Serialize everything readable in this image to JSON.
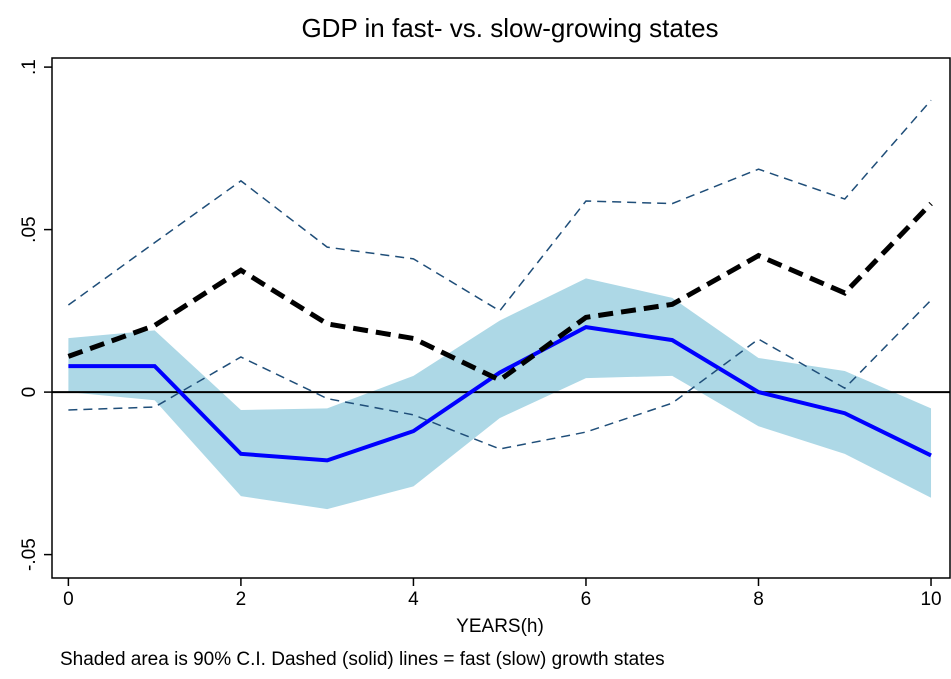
{
  "chart_data": {
    "type": "line",
    "title": "GDP in fast- vs. slow-growing states",
    "xlabel": "YEARS(h)",
    "note": "Shaded area is 90% C.I. Dashed (solid) lines = fast (slow) growth states",
    "x": [
      0,
      1,
      2,
      3,
      4,
      5,
      6,
      7,
      8,
      9,
      10
    ],
    "bands": [
      {
        "color": "#add8e6",
        "upper": [
          0.0166,
          0.019,
          -0.0055,
          -0.005,
          0.005,
          0.022,
          0.035,
          0.029,
          0.0105,
          0.0065,
          -0.005
        ],
        "lower": [
          0.0,
          -0.0025,
          -0.032,
          -0.036,
          -0.029,
          -0.008,
          0.0043,
          0.005,
          -0.0105,
          -0.019,
          -0.0325
        ]
      }
    ],
    "series": [
      {
        "color": "#0000ff",
        "line_style": "solid",
        "line_width": 4,
        "values": [
          0.008,
          0.008,
          -0.019,
          -0.021,
          -0.012,
          0.006,
          0.02,
          0.016,
          0.0,
          -0.0065,
          -0.0195
        ]
      },
      {
        "color": "#000000",
        "line_style": "dashed",
        "line_width": 5,
        "values": [
          0.011,
          0.0205,
          0.0375,
          0.021,
          0.0165,
          0.0037,
          0.023,
          0.027,
          0.042,
          0.0305,
          0.058
        ]
      },
      {
        "color": "#1f4e79",
        "line_style": "dashed",
        "line_width": 1.5,
        "values": [
          0.0268,
          0.046,
          0.065,
          0.0446,
          0.041,
          0.025,
          0.0588,
          0.058,
          0.0686,
          0.0594,
          0.0898
        ]
      },
      {
        "color": "#1f4e79",
        "line_style": "dashed",
        "line_width": 1.5,
        "values": [
          -0.0055,
          -0.0046,
          0.0108,
          -0.002,
          -0.007,
          -0.0175,
          -0.0123,
          -0.0034,
          0.0163,
          0.0012,
          0.0283
        ]
      }
    ],
    "hline": 0,
    "xlim": [
      -0.19,
      10.22
    ],
    "xticks": [
      0,
      2,
      4,
      6,
      8,
      10
    ],
    "ylim": [
      -0.0572,
      0.1028
    ],
    "yticks": [
      {
        "value": -0.05,
        "label": "-.05"
      },
      0,
      {
        "value": 0.05,
        "label": ".05"
      },
      {
        "value": 0.1,
        "label": ".1"
      }
    ],
    "grid": false
  }
}
